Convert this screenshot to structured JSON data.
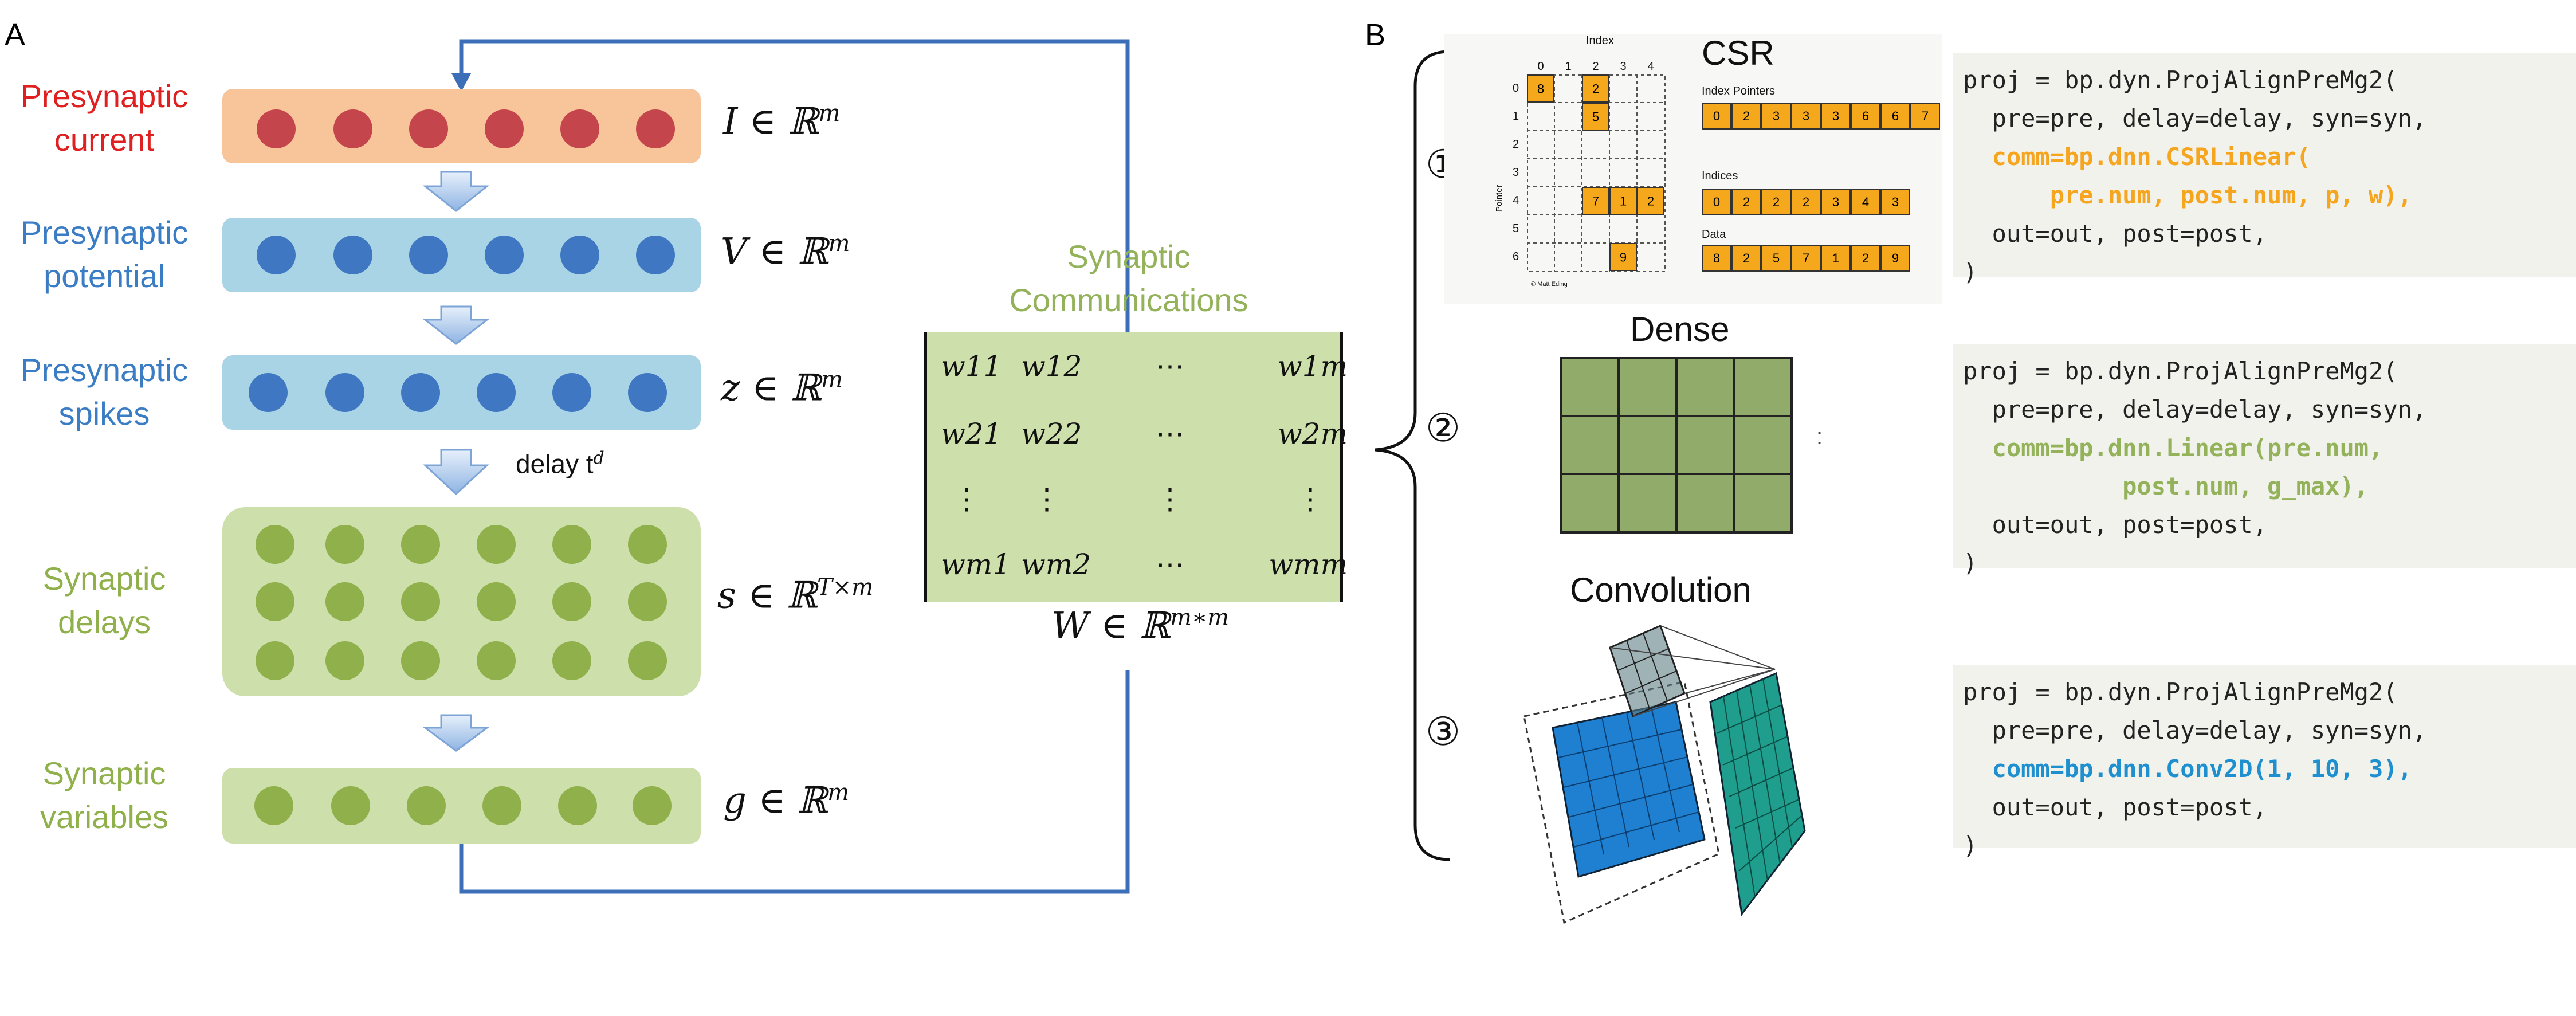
{
  "panel_a": {
    "label": "A",
    "layers": [
      {
        "label_line1": "Presynaptic",
        "label_line2": "current",
        "math": "I ∈ ℝ",
        "sup": "m",
        "color": "#e02020"
      },
      {
        "label_line1": "Presynaptic",
        "label_line2": "potential",
        "math": "V ∈ ℝ",
        "sup": "m",
        "color": "#3b7dc4"
      },
      {
        "label_line1": "Presynaptic",
        "label_line2": "spikes",
        "math": "z ∈ ℝ",
        "sup": "m",
        "color": "#3b7dc4"
      },
      {
        "label_line1": "Synaptic",
        "label_line2": "delays",
        "math": "s ∈ ℝ",
        "sup": "T×m",
        "color": "#8fb04a"
      },
      {
        "label_line1": "Synaptic",
        "label_line2": "variables",
        "math": "g ∈ ℝ",
        "sup": "m",
        "color": "#8fb04a"
      }
    ],
    "delay_label": "delay t",
    "delay_sup": "d",
    "matrix": {
      "title_line1": "Synaptic",
      "title_line2": "Communications",
      "rows": [
        [
          "w11",
          "w12",
          "⋯",
          "w1m"
        ],
        [
          "w21",
          "w22",
          "⋯",
          "w2m"
        ],
        [
          "⋮",
          "⋮",
          "⋮",
          "⋮"
        ],
        [
          "wm1",
          "wm2",
          "⋯",
          "wmm"
        ]
      ],
      "caption": "W ∈ ℝ",
      "caption_sup": "m∗m"
    }
  },
  "panel_b": {
    "label": "B",
    "items": [
      {
        "number": "①",
        "title": "CSR",
        "code_line1": "proj = bp.dyn.ProjAlignPreMg2(",
        "code_line2": "  pre=pre, delay=delay, syn=syn,",
        "code_hl1": "  comm=bp.dnn.CSRLinear(",
        "code_hl2": "      pre.num, post.num, p, w),",
        "code_line5": "  out=out, post=post,",
        "code_line6": ")"
      },
      {
        "number": "②",
        "title": "Dense",
        "code_line1": "proj = bp.dyn.ProjAlignPreMg2(",
        "code_line2": "  pre=pre, delay=delay, syn=syn,",
        "code_hl1": "  comm=bp.dnn.Linear(pre.num,",
        "code_hl2": "           post.num, g_max),",
        "code_line5": "  out=out, post=post,",
        "code_line6": ")"
      },
      {
        "number": "③",
        "title": "Convolution",
        "code_line1": "proj = bp.dyn.ProjAlignPreMg2(",
        "code_line2": "  pre=pre, delay=delay, syn=syn,",
        "code_hl1": "  comm=bp.dnn.Conv2D(1, 10, 3),",
        "code_line4": "  out=out, post=post,",
        "code_line5": ")"
      }
    ],
    "csr": {
      "index_label": "Index",
      "pointer_label": "Pointer",
      "col_indices": [
        "0",
        "1",
        "2",
        "3",
        "4"
      ],
      "row_indices": [
        "0",
        "1",
        "2",
        "3",
        "4",
        "5",
        "6"
      ],
      "cells": [
        {
          "r": 0,
          "c": 0,
          "v": "8"
        },
        {
          "r": 0,
          "c": 2,
          "v": "2"
        },
        {
          "r": 1,
          "c": 2,
          "v": "5"
        },
        {
          "r": 4,
          "c": 2,
          "v": "7"
        },
        {
          "r": 4,
          "c": 3,
          "v": "1"
        },
        {
          "r": 4,
          "c": 4,
          "v": "2"
        },
        {
          "r": 6,
          "c": 3,
          "v": "9"
        }
      ],
      "index_pointers_label": "Index Pointers",
      "index_pointers": [
        "0",
        "2",
        "3",
        "3",
        "3",
        "6",
        "6",
        "7"
      ],
      "indices_label": "Indices",
      "indices": [
        "0",
        "2",
        "2",
        "2",
        "3",
        "4",
        "3"
      ],
      "data_label": "Data",
      "data": [
        "8",
        "2",
        "5",
        "7",
        "1",
        "2",
        "9"
      ],
      "credit": "© Matt Eding"
    },
    "dense_colon": ":"
  }
}
